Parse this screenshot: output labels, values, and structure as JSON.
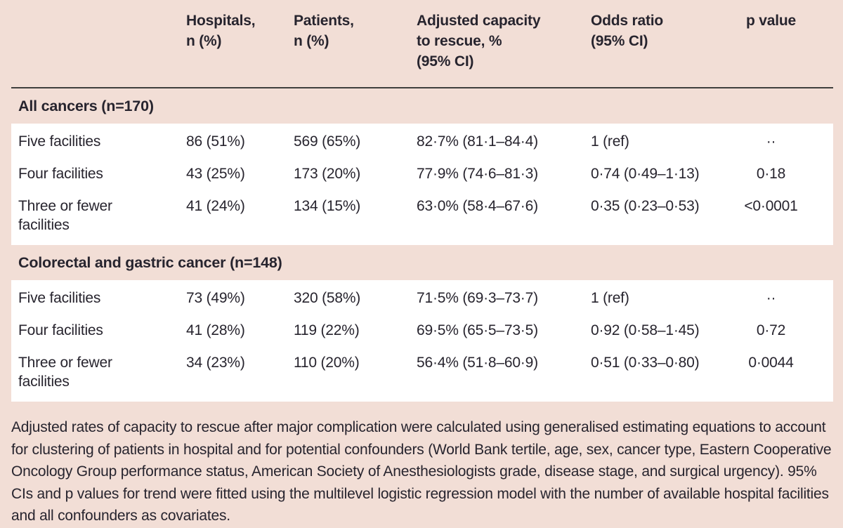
{
  "header": {
    "columns": [
      "",
      "Hospitals,\nn (%)",
      "Patients,\nn (%)",
      "Adjusted capacity\nto rescue, %\n(95% CI)",
      "Odds ratio\n(95% CI)",
      "p value"
    ]
  },
  "sections": [
    {
      "title": "All cancers (n=170)",
      "rows": [
        {
          "label": "Five facilities",
          "hospitals": "86 (51%)",
          "patients": "569 (65%)",
          "capacity": "82·7% (81·1–84·4)",
          "odds_ratio": "1 (ref)",
          "p_value": "··"
        },
        {
          "label": "Four facilities",
          "hospitals": "43 (25%)",
          "patients": "173 (20%)",
          "capacity": "77·9% (74·6–81·3)",
          "odds_ratio": "0·74 (0·49–1·13)",
          "p_value": "0·18"
        },
        {
          "label": "Three or fewer facilities",
          "hospitals": "41 (24%)",
          "patients": "134 (15%)",
          "capacity": "63·0% (58·4–67·6)",
          "odds_ratio": "0·35 (0·23–0·53)",
          "p_value": "<0·0001"
        }
      ]
    },
    {
      "title": "Colorectal and gastric cancer (n=148)",
      "rows": [
        {
          "label": "Five facilities",
          "hospitals": "73 (49%)",
          "patients": "320 (58%)",
          "capacity": "71·5% (69·3–73·7)",
          "odds_ratio": "1 (ref)",
          "p_value": "··"
        },
        {
          "label": "Four facilities",
          "hospitals": "41 (28%)",
          "patients": "119 (22%)",
          "capacity": "69·5% (65·5–73·5)",
          "odds_ratio": "0·92 (0·58–1·45)",
          "p_value": "0·72"
        },
        {
          "label": "Three or fewer facilities",
          "hospitals": "34 (23%)",
          "patients": "110 (20%)",
          "capacity": "56·4% (51·8–60·9)",
          "odds_ratio": "0·51 (0·33–0·80)",
          "p_value": "0·0044"
        }
      ]
    }
  ],
  "footnote": "Adjusted rates of capacity to rescue after major complication were calculated using generalised estimating equations to account for clustering of patients in hospital and for potential confounders (World Bank tertile, age, sex, cancer type, Eastern Cooperative Oncology Group performance status, American Society of Anesthesiologists grade, disease stage, and surgical urgency). 95% CIs and p values for trend were fitted using the multilevel logistic regression model with the number of available hospital facilities and all confounders as covariates.",
  "colors": {
    "background": "#f2ded6",
    "panel": "#ffffff",
    "text": "#27242e",
    "header_rule": "#3f3f3d"
  }
}
